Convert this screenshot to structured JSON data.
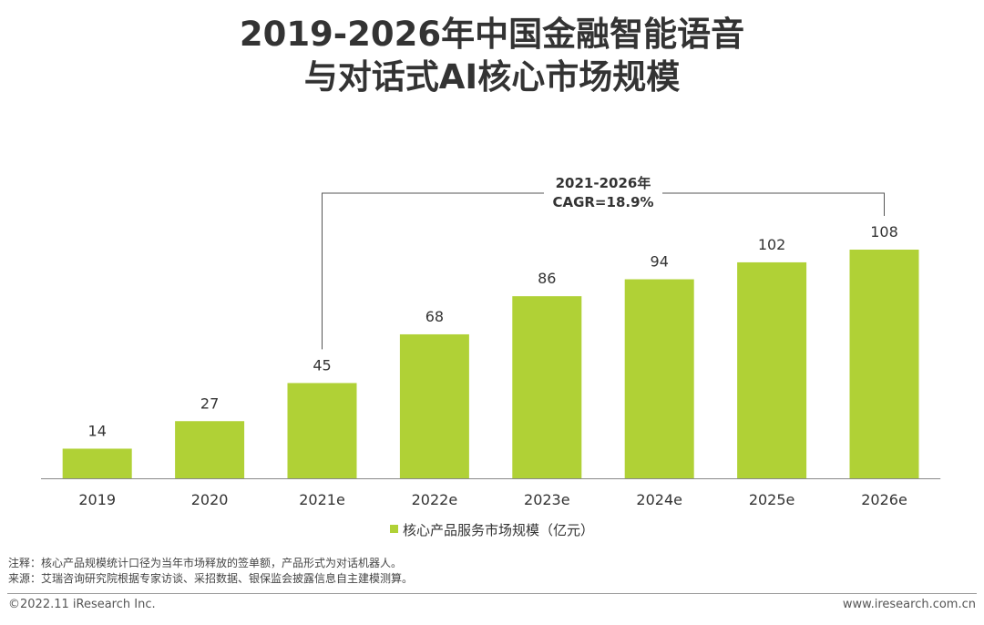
{
  "title_lines": [
    "2019-2026年中国金融智能语音",
    "与对话式AI核心市场规模"
  ],
  "chart_data": {
    "type": "bar",
    "categories": [
      "2019",
      "2020",
      "2021e",
      "2022e",
      "2023e",
      "2024e",
      "2025e",
      "2026e"
    ],
    "values": [
      14,
      27,
      45,
      68,
      86,
      94,
      102,
      108
    ],
    "series": [
      {
        "name": "核心产品服务市场规模（亿元）",
        "values": [
          14,
          27,
          45,
          68,
          86,
          94,
          102,
          108
        ],
        "color": "#b0d136"
      }
    ],
    "ylim": [
      0,
      108
    ],
    "grid": false,
    "legend_position": "bottom",
    "annotation": {
      "lines": [
        "2021-2026年",
        "CAGR=18.9%"
      ],
      "from": "2021e",
      "to": "2026e"
    }
  },
  "notes": [
    "注释：核心产品规模统计口径为当年市场释放的签单额，产品形式为对话机器人。",
    "来源：艾瑞咨询研究院根据专家访谈、采招数据、银保监会披露信息自主建模测算。"
  ],
  "footer": {
    "copyright": "©2022.11 iResearch Inc.",
    "url": "www.iresearch.com.cn"
  },
  "colors": {
    "bar": "#b0d136",
    "axis": "#888888",
    "text": "#333333"
  }
}
